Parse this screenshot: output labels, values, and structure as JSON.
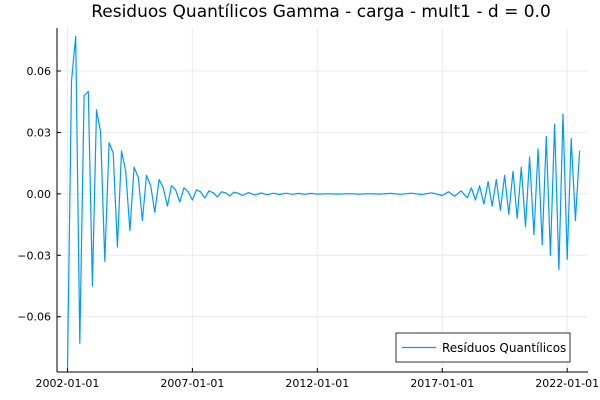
{
  "chart_data": {
    "type": "line",
    "title": "Residuos Quantílicos Gamma - carga - mult1 - d = 0.0",
    "xlabel": "",
    "ylabel": "",
    "x_ticks": [
      "2002-01-01",
      "2007-01-01",
      "2012-01-01",
      "2017-01-01",
      "2022-01-01"
    ],
    "y_ticks": [
      "0.06",
      "0.03",
      "0.00",
      "−0.03",
      "−0.06"
    ],
    "y_tick_values": [
      0.06,
      0.03,
      0.0,
      -0.03,
      -0.06
    ],
    "xlim": [
      "2001-08-01",
      "2022-11-01"
    ],
    "ylim": [
      -0.087,
      0.081
    ],
    "grid": true,
    "legend_position": "bottom-right",
    "colors": {
      "series": "#009AFA",
      "axis": "#000000",
      "grid": "#EBEBEB",
      "text": "#000000"
    },
    "series": [
      {
        "name": "Resíduos Quantílicos",
        "x": [
          "2002-01-01",
          "2002-03-01",
          "2002-05-01",
          "2002-07-01",
          "2002-09-01",
          "2002-11-01",
          "2003-01-01",
          "2003-03-01",
          "2003-05-01",
          "2003-07-01",
          "2003-09-01",
          "2003-11-01",
          "2004-01-01",
          "2004-03-01",
          "2004-05-01",
          "2004-07-01",
          "2004-09-01",
          "2004-11-01",
          "2005-01-01",
          "2005-03-01",
          "2005-05-01",
          "2005-07-01",
          "2005-09-01",
          "2005-11-01",
          "2006-01-01",
          "2006-03-01",
          "2006-05-01",
          "2006-07-01",
          "2006-09-01",
          "2006-11-01",
          "2007-01-01",
          "2007-03-01",
          "2007-05-01",
          "2007-07-01",
          "2007-09-01",
          "2007-11-01",
          "2008-01-01",
          "2008-03-01",
          "2008-05-01",
          "2008-07-01",
          "2008-09-01",
          "2008-11-01",
          "2009-01-01",
          "2009-04-01",
          "2009-07-01",
          "2009-10-01",
          "2010-01-01",
          "2010-04-01",
          "2010-07-01",
          "2010-10-01",
          "2011-01-01",
          "2011-04-01",
          "2011-07-01",
          "2011-10-01",
          "2012-01-01",
          "2012-06-01",
          "2012-11-01",
          "2013-04-01",
          "2013-09-01",
          "2014-02-01",
          "2014-07-01",
          "2014-12-01",
          "2015-05-01",
          "2015-10-01",
          "2016-03-01",
          "2016-08-01",
          "2017-01-01",
          "2017-04-01",
          "2017-07-01",
          "2017-10-01",
          "2018-01-01",
          "2018-03-01",
          "2018-05-01",
          "2018-07-01",
          "2018-09-01",
          "2018-11-01",
          "2019-01-01",
          "2019-03-01",
          "2019-05-01",
          "2019-07-01",
          "2019-09-01",
          "2019-11-01",
          "2020-01-01",
          "2020-03-01",
          "2020-05-01",
          "2020-07-01",
          "2020-09-01",
          "2020-11-01",
          "2021-01-01",
          "2021-03-01",
          "2021-05-01",
          "2021-07-01",
          "2021-09-01",
          "2021-11-01",
          "2022-01-01",
          "2022-03-01",
          "2022-05-01",
          "2022-07-01"
        ],
        "y": [
          -0.085,
          0.055,
          0.077,
          -0.073,
          0.048,
          0.05,
          -0.045,
          0.041,
          0.03,
          -0.033,
          0.025,
          0.02,
          -0.026,
          0.021,
          0.011,
          -0.018,
          0.013,
          0.008,
          -0.013,
          0.009,
          0.004,
          -0.009,
          0.007,
          0.003,
          -0.006,
          0.004,
          0.002,
          -0.004,
          0.003,
          0.001,
          -0.003,
          0.002,
          0.001,
          -0.002,
          0.0015,
          0.0005,
          -0.0015,
          0.001,
          0.0005,
          -0.001,
          0.0008,
          0.0003,
          -0.0008,
          0.0006,
          -0.0005,
          0.0004,
          -0.0004,
          0.0003,
          -0.0003,
          0.0003,
          -0.0002,
          0.0002,
          -0.0002,
          0.0002,
          -0.0001,
          0.0001,
          -0.0001,
          0.0001,
          -0.0001,
          0.0001,
          -0.0001,
          0.0002,
          -0.0002,
          0.0003,
          -0.0003,
          0.0005,
          -0.0008,
          0.001,
          -0.0012,
          0.0015,
          -0.002,
          0.003,
          -0.003,
          0.004,
          -0.005,
          0.006,
          -0.006,
          0.007,
          -0.008,
          0.009,
          -0.01,
          0.011,
          -0.012,
          0.013,
          -0.016,
          0.018,
          -0.02,
          0.022,
          -0.025,
          0.028,
          -0.03,
          0.034,
          -0.037,
          0.039,
          -0.032,
          0.027,
          -0.013,
          0.021
        ]
      }
    ]
  }
}
